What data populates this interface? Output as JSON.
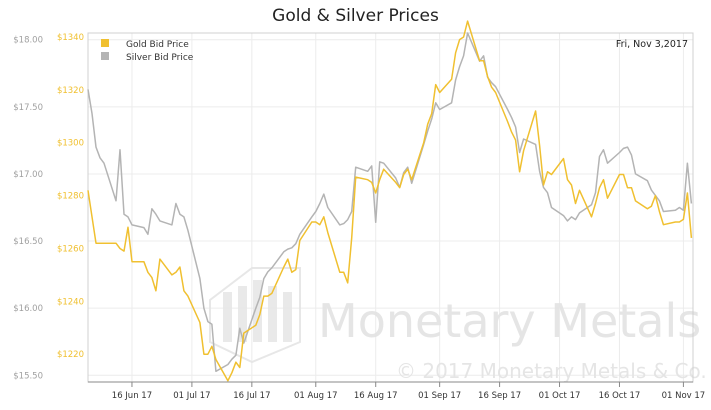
{
  "chart_data": {
    "type": "line",
    "title": "Gold & Silver Prices",
    "date_label": "Fri, Nov 3,2017",
    "x_ticks": [
      "16 Jun 17",
      "01 Jul 17",
      "16 Jul 17",
      "01 Aug 17",
      "16 Aug 17",
      "01 Sep 17",
      "16 Sep 17",
      "01 Oct 17",
      "16 Oct 17",
      "01 Nov 17"
    ],
    "x_range": [
      "2017-06-05",
      "2017-11-03"
    ],
    "y_left": {
      "ticks": [
        "$18.00",
        "$17.50",
        "$17.00",
        "$16.50",
        "$16.00",
        "$15.50"
      ],
      "range": [
        15.45,
        18.05
      ],
      "unit": "$/oz (silver)"
    },
    "y_right": {
      "ticks": [
        "$1340",
        "$1320",
        "$1300",
        "$1280",
        "$1260",
        "$1240",
        "$1220"
      ],
      "range": [
        1209.5,
        1341.5
      ],
      "unit": "$/oz (gold)"
    },
    "legend": {
      "position": "top-left",
      "entries": [
        "Gold Bid Price",
        "Silver Bid Price"
      ]
    },
    "grid": true,
    "series": [
      {
        "name": "Gold Bid Price",
        "axis": "right",
        "color": "#f0c030",
        "x": [
          "2017-06-05",
          "2017-06-06",
          "2017-06-07",
          "2017-06-08",
          "2017-06-09",
          "2017-06-12",
          "2017-06-13",
          "2017-06-14",
          "2017-06-15",
          "2017-06-16",
          "2017-06-19",
          "2017-06-20",
          "2017-06-21",
          "2017-06-22",
          "2017-06-23",
          "2017-06-26",
          "2017-06-27",
          "2017-06-28",
          "2017-06-29",
          "2017-06-30",
          "2017-07-03",
          "2017-07-04",
          "2017-07-05",
          "2017-07-06",
          "2017-07-07",
          "2017-07-10",
          "2017-07-11",
          "2017-07-12",
          "2017-07-13",
          "2017-07-14",
          "2017-07-17",
          "2017-07-18",
          "2017-07-19",
          "2017-07-20",
          "2017-07-21",
          "2017-07-24",
          "2017-07-25",
          "2017-07-26",
          "2017-07-27",
          "2017-07-28",
          "2017-07-31",
          "2017-08-01",
          "2017-08-02",
          "2017-08-03",
          "2017-08-04",
          "2017-08-07",
          "2017-08-08",
          "2017-08-09",
          "2017-08-10",
          "2017-08-11",
          "2017-08-14",
          "2017-08-15",
          "2017-08-16",
          "2017-08-17",
          "2017-08-18",
          "2017-08-21",
          "2017-08-22",
          "2017-08-23",
          "2017-08-24",
          "2017-08-25",
          "2017-08-28",
          "2017-08-29",
          "2017-08-30",
          "2017-08-31",
          "2017-09-01",
          "2017-09-04",
          "2017-09-05",
          "2017-09-06",
          "2017-09-07",
          "2017-09-08",
          "2017-09-11",
          "2017-09-12",
          "2017-09-13",
          "2017-09-14",
          "2017-09-15",
          "2017-09-18",
          "2017-09-19",
          "2017-09-20",
          "2017-09-21",
          "2017-09-22",
          "2017-09-25",
          "2017-09-26",
          "2017-09-27",
          "2017-09-28",
          "2017-09-29",
          "2017-10-02",
          "2017-10-03",
          "2017-10-04",
          "2017-10-05",
          "2017-10-06",
          "2017-10-09",
          "2017-10-10",
          "2017-10-11",
          "2017-10-12",
          "2017-10-13",
          "2017-10-16",
          "2017-10-17",
          "2017-10-18",
          "2017-10-19",
          "2017-10-20",
          "2017-10-23",
          "2017-10-24",
          "2017-10-25",
          "2017-10-26",
          "2017-10-27",
          "2017-10-30",
          "2017-10-31",
          "2017-11-01",
          "2017-11-02",
          "2017-11-03"
        ],
        "values": [
          1282,
          1272,
          1262,
          1262,
          1262,
          1262,
          1260,
          1259,
          1268,
          1255,
          1255,
          1251,
          1249,
          1244,
          1256,
          1250,
          1251,
          1253,
          1244,
          1242,
          1232,
          1220,
          1220,
          1223,
          1218,
          1210,
          1213,
          1217,
          1215,
          1228,
          1231,
          1235,
          1242,
          1242,
          1243,
          1253,
          1256,
          1251,
          1252,
          1263,
          1270,
          1270,
          1269,
          1272,
          1266,
          1251,
          1251,
          1247,
          1264,
          1287,
          1286,
          1285,
          1281,
          1286,
          1290,
          1285,
          1283,
          1288,
          1290,
          1286,
          1300,
          1307,
          1311,
          1322,
          1319,
          1324,
          1334,
          1339,
          1340,
          1346,
          1331,
          1331,
          1325,
          1321,
          1319,
          1308,
          1304,
          1301,
          1289,
          1297,
          1312,
          1299,
          1284,
          1289,
          1288,
          1294,
          1286,
          1284,
          1277,
          1282,
          1272,
          1277,
          1283,
          1286,
          1279,
          1288,
          1288,
          1283,
          1283,
          1278,
          1275,
          1276,
          1280,
          1274,
          1269,
          1270,
          1270,
          1271,
          1281,
          1264
        ]
      },
      {
        "name": "Silver Bid Price",
        "axis": "left",
        "color": "#b4b4b4",
        "x": [
          "2017-06-05",
          "2017-06-06",
          "2017-06-07",
          "2017-06-08",
          "2017-06-09",
          "2017-06-12",
          "2017-06-13",
          "2017-06-14",
          "2017-06-15",
          "2017-06-16",
          "2017-06-19",
          "2017-06-20",
          "2017-06-21",
          "2017-06-22",
          "2017-06-23",
          "2017-06-26",
          "2017-06-27",
          "2017-06-28",
          "2017-06-29",
          "2017-06-30",
          "2017-07-03",
          "2017-07-04",
          "2017-07-05",
          "2017-07-06",
          "2017-07-07",
          "2017-07-10",
          "2017-07-11",
          "2017-07-12",
          "2017-07-13",
          "2017-07-14",
          "2017-07-17",
          "2017-07-18",
          "2017-07-19",
          "2017-07-20",
          "2017-07-21",
          "2017-07-24",
          "2017-07-25",
          "2017-07-26",
          "2017-07-27",
          "2017-07-28",
          "2017-07-31",
          "2017-08-01",
          "2017-08-02",
          "2017-08-03",
          "2017-08-04",
          "2017-08-07",
          "2017-08-08",
          "2017-08-09",
          "2017-08-10",
          "2017-08-11",
          "2017-08-14",
          "2017-08-15",
          "2017-08-16",
          "2017-08-17",
          "2017-08-18",
          "2017-08-21",
          "2017-08-22",
          "2017-08-23",
          "2017-08-24",
          "2017-08-25",
          "2017-08-28",
          "2017-08-29",
          "2017-08-30",
          "2017-08-31",
          "2017-09-01",
          "2017-09-04",
          "2017-09-05",
          "2017-09-06",
          "2017-09-07",
          "2017-09-08",
          "2017-09-11",
          "2017-09-12",
          "2017-09-13",
          "2017-09-14",
          "2017-09-15",
          "2017-09-18",
          "2017-09-19",
          "2017-09-20",
          "2017-09-21",
          "2017-09-22",
          "2017-09-25",
          "2017-09-26",
          "2017-09-27",
          "2017-09-28",
          "2017-09-29",
          "2017-10-02",
          "2017-10-03",
          "2017-10-04",
          "2017-10-05",
          "2017-10-06",
          "2017-10-09",
          "2017-10-10",
          "2017-10-11",
          "2017-10-12",
          "2017-10-13",
          "2017-10-16",
          "2017-10-17",
          "2017-10-18",
          "2017-10-19",
          "2017-10-20",
          "2017-10-23",
          "2017-10-24",
          "2017-10-25",
          "2017-10-26",
          "2017-10-27",
          "2017-10-30",
          "2017-10-31",
          "2017-11-01",
          "2017-11-02",
          "2017-11-03"
        ],
        "values": [
          17.63,
          17.45,
          17.2,
          17.12,
          17.08,
          16.8,
          17.18,
          16.7,
          16.68,
          16.62,
          16.6,
          16.55,
          16.74,
          16.7,
          16.65,
          16.62,
          16.78,
          16.7,
          16.68,
          16.58,
          16.22,
          16.0,
          15.9,
          15.88,
          15.53,
          15.58,
          15.62,
          15.65,
          15.85,
          15.74,
          16.0,
          16.08,
          16.22,
          16.27,
          16.3,
          16.42,
          16.44,
          16.45,
          16.48,
          16.55,
          16.68,
          16.72,
          16.78,
          16.85,
          16.75,
          16.62,
          16.63,
          16.66,
          16.72,
          17.05,
          17.02,
          17.06,
          16.64,
          17.09,
          17.08,
          16.97,
          16.9,
          17.01,
          17.05,
          16.93,
          17.22,
          17.32,
          17.41,
          17.53,
          17.48,
          17.53,
          17.7,
          17.8,
          17.88,
          18.05,
          17.84,
          17.88,
          17.72,
          17.68,
          17.65,
          17.48,
          17.42,
          17.35,
          17.16,
          17.26,
          17.22,
          17.02,
          16.9,
          16.86,
          16.75,
          16.69,
          16.65,
          16.68,
          16.66,
          16.71,
          16.77,
          16.86,
          17.13,
          17.18,
          17.08,
          17.16,
          17.19,
          17.2,
          17.14,
          17.0,
          16.95,
          16.88,
          16.84,
          16.8,
          16.72,
          16.73,
          16.75,
          16.73,
          17.08,
          16.78
        ]
      }
    ]
  },
  "watermark": {
    "main": "Monetary Metals",
    "copyright": "© 2017 Monetary Metals & Co."
  }
}
